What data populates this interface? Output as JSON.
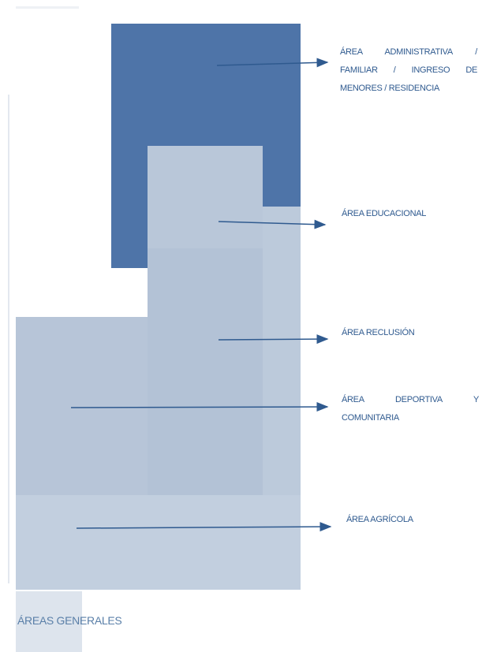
{
  "diagram": {
    "labels": {
      "administrativa": [
        "ÁREA ADMINISTRATIVA /",
        "FAMILIAR / INGRESO DE",
        "MENORES / RESIDENCIA"
      ],
      "educacional": "ÁREA EDUCACIONAL",
      "reclusion": "ÁREA RECLUSIÓN",
      "deportiva": [
        "ÁREA DEPORTIVA Y",
        "COMUNITARIA"
      ],
      "agricola": "ÁREA AGRÍCOLA"
    },
    "footer": "ÁREAS GENERALES",
    "colors": {
      "administrativa": "#4e74a8",
      "educacional": "#b9c7d9",
      "reclusion": "#b3c2d6",
      "deportiva": "#b7c5d8",
      "agricola": "#c2cfdf",
      "arrow": "#2f5a8f",
      "label": "#2f5a8f"
    }
  }
}
